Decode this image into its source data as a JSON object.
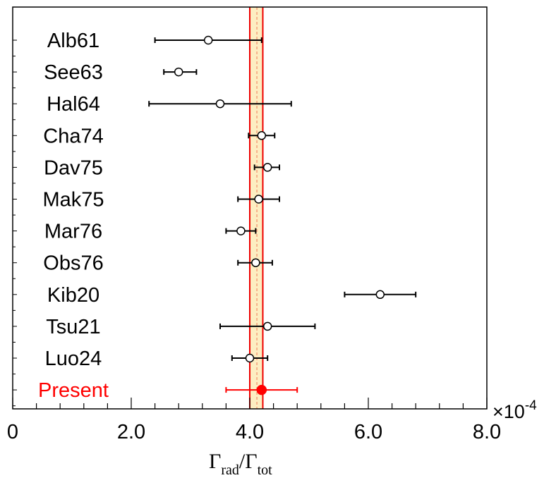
{
  "chart_data": {
    "type": "scatter",
    "orientation": "horizontal-errorbar",
    "xlabel_parts": {
      "num": "Γ",
      "num_sub": "rad",
      "slash": "/",
      "den": "Γ",
      "den_sub": "tot"
    },
    "x_multiplier": "×10",
    "x_multiplier_exp": "-4",
    "xlim": [
      0,
      8.0
    ],
    "xticks": [
      {
        "value": 0,
        "label": "0"
      },
      {
        "value": 2.0,
        "label": "2.0"
      },
      {
        "value": 4.0,
        "label": "4.0"
      },
      {
        "value": 6.0,
        "label": "6.0"
      },
      {
        "value": 8.0,
        "label": "8.0"
      }
    ],
    "grid": false,
    "points": [
      {
        "label": "Alb61",
        "value": 3.3,
        "err_low": 2.4,
        "err_high": 4.2,
        "marker": "open-circle",
        "color": "#000000"
      },
      {
        "label": "See63",
        "value": 2.8,
        "err_low": 2.55,
        "err_high": 3.1,
        "marker": "open-circle",
        "color": "#000000"
      },
      {
        "label": "Hal64",
        "value": 3.5,
        "err_low": 2.3,
        "err_high": 4.7,
        "marker": "open-circle",
        "color": "#000000"
      },
      {
        "label": "Cha74",
        "value": 4.2,
        "err_low": 3.98,
        "err_high": 4.42,
        "marker": "open-circle",
        "color": "#000000"
      },
      {
        "label": "Dav75",
        "value": 4.3,
        "err_low": 4.08,
        "err_high": 4.5,
        "marker": "open-circle",
        "color": "#000000"
      },
      {
        "label": "Mak75",
        "value": 4.15,
        "err_low": 3.8,
        "err_high": 4.5,
        "marker": "open-circle",
        "color": "#000000"
      },
      {
        "label": "Mar76",
        "value": 3.85,
        "err_low": 3.6,
        "err_high": 4.1,
        "marker": "open-circle",
        "color": "#000000"
      },
      {
        "label": "Obs76",
        "value": 4.1,
        "err_low": 3.8,
        "err_high": 4.38,
        "marker": "open-circle",
        "color": "#000000"
      },
      {
        "label": "Kib20",
        "value": 6.2,
        "err_low": 5.6,
        "err_high": 6.8,
        "marker": "open-circle",
        "color": "#000000"
      },
      {
        "label": "Tsu21",
        "value": 4.3,
        "err_low": 3.5,
        "err_high": 5.1,
        "marker": "open-circle",
        "color": "#000000"
      },
      {
        "label": "Luo24",
        "value": 4.0,
        "err_low": 3.7,
        "err_high": 4.3,
        "marker": "open-circle",
        "color": "#000000"
      },
      {
        "label": "Present",
        "value": 4.2,
        "err_low": 3.6,
        "err_high": 4.8,
        "marker": "filled-circle",
        "color": "#ff0000"
      }
    ],
    "band": {
      "low": 4.0,
      "high": 4.22,
      "center": 4.12,
      "fill": "#fdeec2",
      "edge_color": "#ee0000",
      "center_color": "#f5a07a"
    }
  }
}
